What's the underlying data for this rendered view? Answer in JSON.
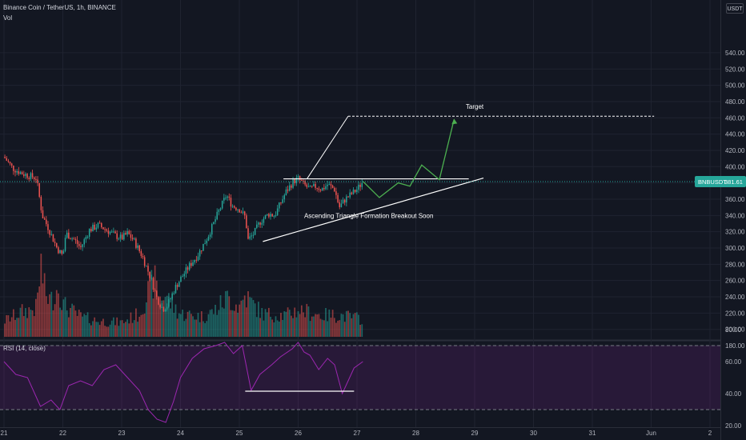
{
  "header": {
    "symbol_title": "Binance Coin / TetherUS, 1h, BINANCE",
    "volume_label": "Vol",
    "rsi_label": "RSI (14, close)",
    "quote_currency": "USDT"
  },
  "price_badge": {
    "symbol": "BNBUSDT",
    "price": "381.61",
    "color": "#26a69a"
  },
  "annotations": {
    "target_label": "Target",
    "pattern_label": "Ascending Triangle Formation Breakout Soon"
  },
  "colors": {
    "up": "#26a69a",
    "down": "#ef5350",
    "projection": "#4caf50",
    "rsi": "#9c27b0"
  },
  "chart_data": [
    {
      "type": "candlestick",
      "title": "Binance Coin / TetherUS, 1h, BINANCE",
      "x_tick_labels": [
        "21",
        "22",
        "23",
        "24",
        "25",
        "26",
        "27",
        "28",
        "29",
        "30",
        "31",
        "Jun",
        "2"
      ],
      "y_tick_labels": [
        "180.00",
        "200.00",
        "220.00",
        "240.00",
        "260.00",
        "280.00",
        "300.00",
        "320.00",
        "340.00",
        "360.00",
        "380.00",
        "400.00",
        "420.00",
        "440.00",
        "460.00",
        "480.00",
        "500.00",
        "520.00",
        "540.00"
      ],
      "ylim": [
        170,
        555
      ],
      "price_path_days": [
        [
          0.0,
          412
        ],
        [
          0.15,
          398
        ],
        [
          0.3,
          392
        ],
        [
          0.45,
          388
        ],
        [
          0.55,
          386
        ],
        [
          0.65,
          340
        ],
        [
          0.75,
          325
        ],
        [
          0.9,
          300
        ],
        [
          1.0,
          290
        ],
        [
          1.05,
          318
        ],
        [
          1.2,
          310
        ],
        [
          1.3,
          300
        ],
        [
          1.45,
          322
        ],
        [
          1.6,
          328
        ],
        [
          1.75,
          322
        ],
        [
          1.9,
          315
        ],
        [
          2.0,
          312
        ],
        [
          2.1,
          318
        ],
        [
          2.2,
          310
        ],
        [
          2.35,
          290
        ],
        [
          2.5,
          262
        ],
        [
          2.6,
          238
        ],
        [
          2.7,
          225
        ],
        [
          2.78,
          230
        ],
        [
          2.9,
          250
        ],
        [
          3.0,
          262
        ],
        [
          3.15,
          278
        ],
        [
          3.3,
          292
        ],
        [
          3.45,
          312
        ],
        [
          3.55,
          328
        ],
        [
          3.65,
          345
        ],
        [
          3.78,
          365
        ],
        [
          3.88,
          352
        ],
        [
          4.0,
          348
        ],
        [
          4.1,
          338
        ],
        [
          4.15,
          310
        ],
        [
          4.25,
          318
        ],
        [
          4.35,
          332
        ],
        [
          4.5,
          342
        ],
        [
          4.6,
          340
        ],
        [
          4.7,
          355
        ],
        [
          4.8,
          370
        ],
        [
          4.92,
          382
        ],
        [
          5.0,
          385
        ],
        [
          5.1,
          378
        ],
        [
          5.2,
          372
        ],
        [
          5.3,
          376
        ],
        [
          5.4,
          372
        ],
        [
          5.5,
          378
        ],
        [
          5.62,
          372
        ],
        [
          5.7,
          350
        ],
        [
          5.8,
          360
        ],
        [
          5.9,
          366
        ],
        [
          6.0,
          372
        ],
        [
          6.1,
          381.61
        ]
      ],
      "candle_count": 208,
      "volume_profile": [
        [
          0.0,
          0.22
        ],
        [
          0.3,
          0.35
        ],
        [
          0.55,
          0.4
        ],
        [
          0.63,
          1.0
        ],
        [
          0.7,
          0.6
        ],
        [
          0.8,
          0.5
        ],
        [
          0.93,
          0.72
        ],
        [
          1.0,
          0.45
        ],
        [
          1.3,
          0.28
        ],
        [
          1.6,
          0.22
        ],
        [
          2.0,
          0.2
        ],
        [
          2.3,
          0.32
        ],
        [
          2.45,
          0.62
        ],
        [
          2.55,
          0.8
        ],
        [
          2.65,
          0.55
        ],
        [
          2.75,
          0.6
        ],
        [
          2.85,
          0.45
        ],
        [
          3.0,
          0.32
        ],
        [
          3.4,
          0.28
        ],
        [
          3.6,
          0.38
        ],
        [
          3.8,
          0.55
        ],
        [
          4.0,
          0.42
        ],
        [
          4.1,
          0.58
        ],
        [
          4.2,
          0.48
        ],
        [
          4.4,
          0.32
        ],
        [
          4.8,
          0.3
        ],
        [
          5.0,
          0.38
        ],
        [
          5.4,
          0.3
        ],
        [
          5.7,
          0.3
        ],
        [
          6.1,
          0.25
        ]
      ],
      "projection_path": [
        [
          6.1,
          382
        ],
        [
          6.38,
          362
        ],
        [
          6.7,
          380
        ],
        [
          6.9,
          376
        ],
        [
          7.1,
          402
        ],
        [
          7.4,
          384
        ],
        [
          7.65,
          458
        ]
      ],
      "resistance_level": 385,
      "target_level": 462,
      "current_price": 381.61
    },
    {
      "type": "line",
      "title": "RSI (14, close)",
      "ylim": [
        15,
        82
      ],
      "y_tick_labels": [
        "20.00",
        "40.00",
        "60.00",
        "80.00"
      ],
      "band": [
        30,
        70
      ],
      "values_path": [
        [
          0,
          60
        ],
        [
          0.2,
          52
        ],
        [
          0.4,
          50
        ],
        [
          0.62,
          32
        ],
        [
          0.8,
          36
        ],
        [
          0.95,
          30
        ],
        [
          1.1,
          45
        ],
        [
          1.3,
          48
        ],
        [
          1.5,
          45
        ],
        [
          1.7,
          55
        ],
        [
          1.9,
          58
        ],
        [
          2.1,
          50
        ],
        [
          2.3,
          42
        ],
        [
          2.45,
          30
        ],
        [
          2.6,
          24
        ],
        [
          2.75,
          22
        ],
        [
          2.88,
          35
        ],
        [
          3.0,
          50
        ],
        [
          3.2,
          62
        ],
        [
          3.4,
          68
        ],
        [
          3.6,
          70
        ],
        [
          3.75,
          72
        ],
        [
          3.9,
          65
        ],
        [
          4.05,
          70
        ],
        [
          4.2,
          42
        ],
        [
          4.35,
          52
        ],
        [
          4.55,
          58
        ],
        [
          4.7,
          63
        ],
        [
          4.9,
          68
        ],
        [
          5.0,
          72
        ],
        [
          5.1,
          66
        ],
        [
          5.2,
          64
        ],
        [
          5.35,
          55
        ],
        [
          5.5,
          62
        ],
        [
          5.62,
          58
        ],
        [
          5.75,
          40
        ],
        [
          5.85,
          48
        ],
        [
          5.95,
          56
        ],
        [
          6.1,
          60
        ]
      ],
      "support_level": 41.5
    }
  ]
}
